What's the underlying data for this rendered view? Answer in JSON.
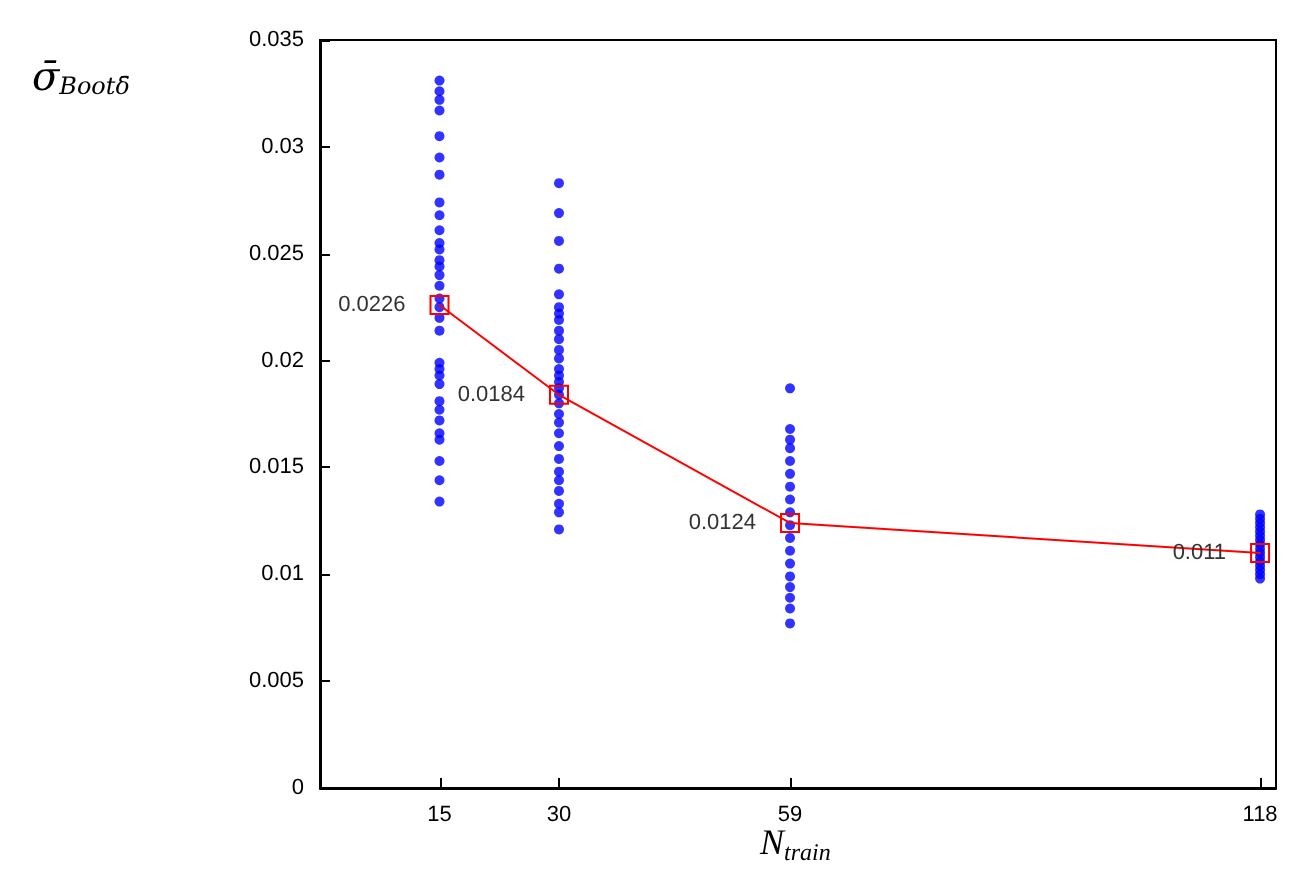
{
  "chart_data": {
    "type": "scatter",
    "xlabel": "N$_{train}$",
    "ylabel": "σ̄$_{Boot}$$_{δ̄}$",
    "xlim": [
      0,
      120
    ],
    "xticks": [
      15,
      30,
      59,
      118
    ],
    "ylim": [
      0,
      0.035
    ],
    "yticks": [
      0,
      0.005,
      0.01,
      0.015,
      0.02,
      0.025,
      0.03,
      0.035
    ],
    "grid": false,
    "series": [
      {
        "color": "#0000ff",
        "marker": "circle",
        "x": [
          15,
          15,
          15,
          15,
          15,
          15,
          15,
          15,
          15,
          15,
          15,
          15,
          15,
          15,
          15,
          15,
          15,
          15,
          15,
          15,
          15,
          15,
          15,
          15,
          15,
          15,
          15,
          15,
          15,
          15,
          15,
          15,
          30,
          30,
          30,
          30,
          30,
          30,
          30,
          30,
          30,
          30,
          30,
          30,
          30,
          30,
          30,
          30,
          30,
          30,
          30,
          30,
          30,
          30,
          30,
          30,
          30,
          30,
          30,
          30,
          30,
          59,
          59,
          59,
          59,
          59,
          59,
          59,
          59,
          59,
          59,
          59,
          59,
          59,
          59,
          59,
          59,
          59,
          59,
          118,
          118,
          118,
          118,
          118,
          118,
          118,
          118,
          118,
          118,
          118,
          118,
          118,
          118,
          118,
          118
        ],
        "values": [
          0.0331,
          0.0326,
          0.0322,
          0.0317,
          0.0305,
          0.0295,
          0.0287,
          0.0274,
          0.0268,
          0.0261,
          0.0255,
          0.0252,
          0.0247,
          0.0244,
          0.024,
          0.0235,
          0.0229,
          0.0225,
          0.022,
          0.0214,
          0.0199,
          0.0196,
          0.0193,
          0.0189,
          0.0181,
          0.0177,
          0.0172,
          0.0166,
          0.0163,
          0.0153,
          0.0144,
          0.0134,
          0.0283,
          0.0269,
          0.0256,
          0.0243,
          0.0231,
          0.0225,
          0.0222,
          0.0219,
          0.0214,
          0.021,
          0.0205,
          0.0201,
          0.0196,
          0.0193,
          0.019,
          0.0187,
          0.0184,
          0.018,
          0.0175,
          0.0171,
          0.0166,
          0.016,
          0.0154,
          0.0148,
          0.0144,
          0.0139,
          0.0133,
          0.0129,
          0.0121,
          0.0187,
          0.0168,
          0.0163,
          0.0159,
          0.0153,
          0.0147,
          0.0141,
          0.0135,
          0.0129,
          0.0123,
          0.0117,
          0.0111,
          0.0105,
          0.0099,
          0.0094,
          0.0089,
          0.0084,
          0.0077,
          0.0128,
          0.0126,
          0.0124,
          0.0122,
          0.012,
          0.0118,
          0.0116,
          0.0114,
          0.0112,
          0.011,
          0.0108,
          0.0106,
          0.0104,
          0.0102,
          0.01,
          0.0098
        ]
      },
      {
        "type": "line",
        "color": "#ff0000",
        "marker": "square",
        "line_style": "solid",
        "x": [
          15,
          30,
          59,
          118
        ],
        "values": [
          0.0226,
          0.0184,
          0.0124,
          0.011
        ],
        "value_labels": [
          "0.0226",
          "0.0184",
          "0.0124",
          "0.011"
        ]
      }
    ]
  }
}
